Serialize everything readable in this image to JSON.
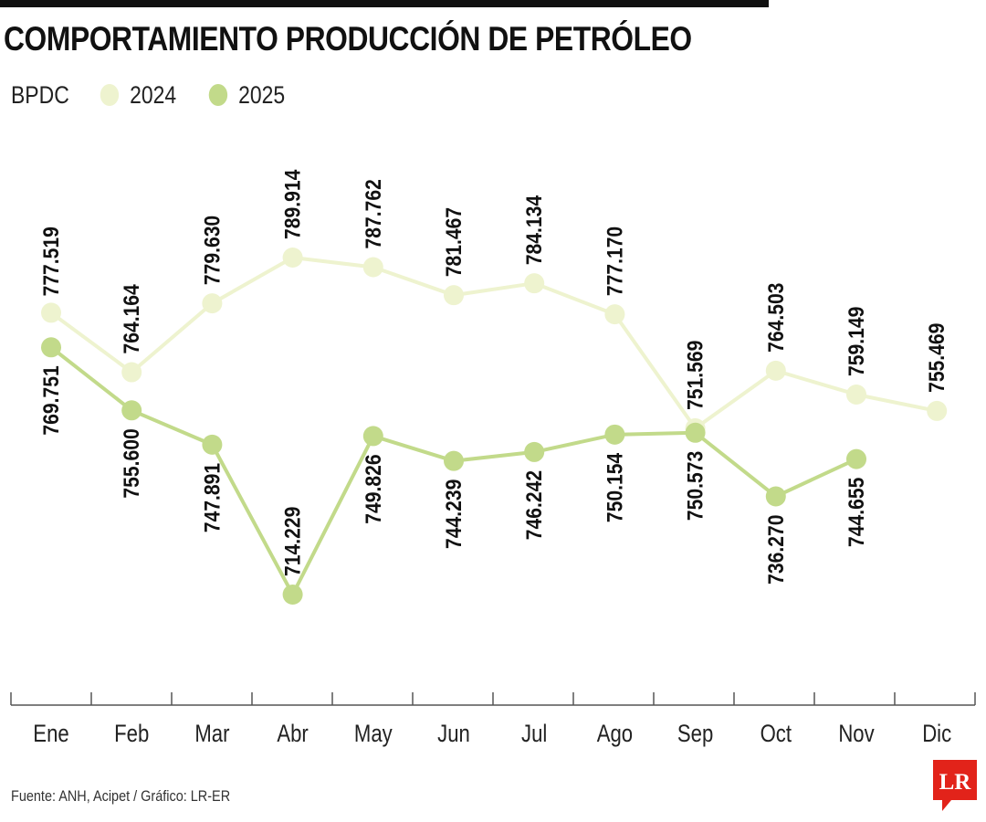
{
  "title": "COMPORTAMIENTO PRODUCCIÓN DE PETRÓLEO",
  "legend": {
    "unit": "BPDC",
    "items": [
      {
        "label": "2024",
        "color": "#eef3cf"
      },
      {
        "label": "2025",
        "color": "#c2da8a"
      }
    ]
  },
  "source": "Fuente: ANH, Acipet / Gráfico: LR-ER",
  "logo": {
    "text": "LR",
    "color": "#e2231a"
  },
  "chart_data": {
    "type": "line",
    "title": "COMPORTAMIENTO PRODUCCIÓN DE PETRÓLEO",
    "ylabel": "BPDC",
    "categories": [
      "Ene",
      "Feb",
      "Mar",
      "Abr",
      "May",
      "Jun",
      "Jul",
      "Ago",
      "Sep",
      "Oct",
      "Nov",
      "Dic"
    ],
    "series": [
      {
        "name": "2024",
        "color": "#eef3cf",
        "values": [
          777519,
          764164,
          779630,
          789914,
          787762,
          781467,
          784134,
          777170,
          751569,
          764503,
          759149,
          755469
        ],
        "labels": [
          "777.519",
          "764.164",
          "779.630",
          "789.914",
          "787.762",
          "781.467",
          "784.134",
          "777.170",
          "751.569",
          "764.503",
          "759.149",
          "755.469"
        ]
      },
      {
        "name": "2025",
        "color": "#c2da8a",
        "values": [
          769751,
          755600,
          747891,
          714229,
          749826,
          744239,
          746242,
          750154,
          750573,
          736270,
          744655,
          null
        ],
        "labels": [
          "769.751",
          "755.600",
          "747.891",
          "714.229",
          "749.826",
          "744.239",
          "746.242",
          "750.154",
          "750.573",
          "736.270",
          "744.655",
          null
        ]
      }
    ],
    "grid": false,
    "legend_position": "top-left"
  }
}
